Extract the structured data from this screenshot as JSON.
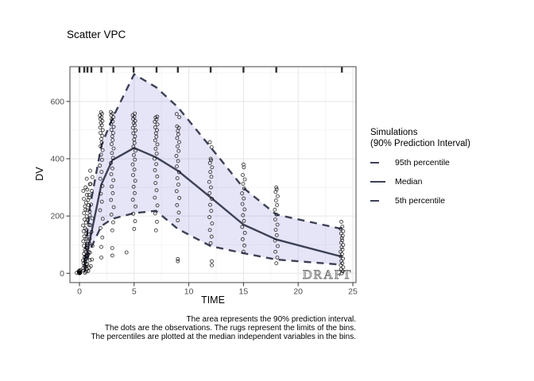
{
  "title": "Scatter VPC",
  "axes": {
    "x_label": "TIME",
    "y_label": "DV",
    "x_ticks": [
      0,
      5,
      10,
      15,
      20,
      25
    ],
    "y_ticks": [
      0,
      200,
      400,
      600
    ]
  },
  "legend": {
    "title_line1": "Simulations",
    "title_line2": "(90% Prediction Interval)",
    "items": [
      {
        "label": "95th percentile",
        "style": "dashed"
      },
      {
        "label": "Median",
        "style": "solid"
      },
      {
        "label": "5th percentile",
        "style": "dashed"
      }
    ]
  },
  "watermark": "DRAFT",
  "caption": {
    "line1": "The area represents the 90% prediction interval.",
    "line2": "The dots are the observations. The rugs represent the limits of the bins.",
    "line3": "The percentiles are plotted at the median independent variables in the bins."
  },
  "colors": {
    "line": "#3d4156",
    "ribbon": "rgba(128,118,216,0.20)",
    "grid_major": "#e6e6e6",
    "grid_minor": "#f2f2f2",
    "panel_border": "#555555",
    "axis_text": "#4d4d4d",
    "tick": "#333333",
    "rug": "#1a1a1a",
    "point": "#000000",
    "watermark": "#7a7a7a"
  },
  "chart_data": {
    "type": "scatter",
    "subtype": "vpc-prediction-interval",
    "xlabel": "TIME",
    "ylabel": "DV",
    "xlim": [
      -0.9,
      25.3
    ],
    "ylim": [
      -32,
      721
    ],
    "grid": true,
    "legend_position": "right",
    "bin_limit_rugs": [
      0,
      0.44,
      0.73,
      1.09,
      2,
      3.1,
      4.95,
      7.05,
      9,
      12,
      15,
      18,
      24
    ],
    "series": [
      {
        "name": "95th percentile",
        "dash": true,
        "x": [
          0.44,
          0.95,
          2,
          3,
          5,
          7,
          9,
          12,
          15,
          18,
          24
        ],
        "y": [
          40,
          230,
          445,
          540,
          695,
          650,
          580,
          440,
          298,
          205,
          155
        ]
      },
      {
        "name": "Median",
        "dash": false,
        "x": [
          0.44,
          0.95,
          2,
          3,
          5,
          7,
          9,
          12,
          15,
          18,
          24
        ],
        "y": [
          25,
          115,
          310,
          395,
          438,
          405,
          358,
          265,
          170,
          118,
          58
        ]
      },
      {
        "name": "5th percentile",
        "dash": true,
        "x": [
          0.44,
          0.95,
          2,
          3,
          5,
          7,
          9,
          12,
          15,
          18,
          24
        ],
        "y": [
          5,
          80,
          165,
          190,
          210,
          218,
          155,
          95,
          70,
          48,
          30
        ]
      }
    ],
    "observation_columns": [
      {
        "t": 0,
        "spread": 0.8,
        "filled": true,
        "dv": [
          0,
          1,
          2,
          3,
          5,
          7,
          9,
          11
        ]
      },
      {
        "t": 0.5,
        "spread": 1.7,
        "dv": [
          2,
          6,
          10,
          14,
          18,
          22,
          26,
          30,
          35,
          40,
          45,
          50,
          56,
          62,
          68,
          75,
          82,
          89,
          96,
          104,
          112,
          120,
          129,
          138,
          147,
          157,
          167,
          177,
          188,
          199,
          210,
          222,
          234,
          247,
          260,
          274,
          288,
          300
        ]
      },
      {
        "t": 0.8,
        "spread": 1.5,
        "dv": [
          8,
          20,
          33,
          46,
          60,
          74,
          89,
          104,
          120,
          136,
          152,
          169,
          186,
          203,
          220,
          238,
          256,
          274,
          292,
          311,
          330
        ]
      },
      {
        "t": 1.05,
        "spread": 1.4,
        "dv": [
          25,
          48,
          72,
          96,
          120,
          144,
          168,
          192,
          216,
          240,
          264,
          288,
          312,
          336,
          358
        ]
      },
      {
        "t": 2,
        "spread": 1.3,
        "dv": [
          92,
          125,
          158,
          190,
          220,
          250,
          278,
          305,
          330,
          354,
          376,
          396,
          414,
          430,
          444,
          457,
          469,
          480,
          490,
          500,
          509,
          517,
          525,
          532,
          539,
          545,
          551,
          557,
          562
        ]
      },
      {
        "t": 3,
        "spread": 1.3,
        "dv": [
          150,
          178,
          205,
          231,
          256,
          280,
          303,
          325,
          346,
          366,
          385,
          403,
          420,
          436,
          451,
          465,
          478,
          490,
          501,
          511,
          521,
          530,
          538,
          545,
          552,
          558,
          563
        ]
      },
      {
        "t": 5,
        "spread": 1.3,
        "dv": [
          155,
          182,
          208,
          233,
          257,
          280,
          302,
          323,
          343,
          362,
          380,
          397,
          413,
          428,
          442,
          455,
          467,
          478,
          489,
          499,
          508,
          517,
          525,
          532,
          539,
          546,
          552,
          558
        ]
      },
      {
        "t": 7,
        "spread": 1.3,
        "dv": [
          150,
          180,
          209,
          237,
          264,
          290,
          315,
          338,
          360,
          381,
          400,
          418,
          435,
          450,
          464,
          477,
          489,
          500,
          510,
          520,
          529,
          537,
          544,
          547
        ]
      },
      {
        "t": 9,
        "spread": 1.3,
        "dv": [
          185,
          212,
          238,
          263,
          287,
          310,
          332,
          353,
          373,
          392,
          410,
          427,
          443,
          458,
          472,
          485,
          497,
          508,
          513,
          545,
          556
        ]
      },
      {
        "t": 12,
        "spread": 1.3,
        "dv": [
          105,
          128,
          151,
          174,
          196,
          218,
          239,
          260,
          280,
          300,
          319,
          337,
          354,
          370,
          385,
          395,
          400,
          440,
          458
        ]
      },
      {
        "t": 15,
        "spread": 1.3,
        "dv": [
          75,
          97,
          119,
          141,
          162,
          183,
          203,
          223,
          242,
          261,
          279,
          296,
          312,
          328,
          343,
          370,
          380
        ]
      },
      {
        "t": 18,
        "spread": 1.3,
        "dv": [
          35,
          55,
          75,
          95,
          114,
          133,
          152,
          170,
          188,
          205,
          222,
          238,
          254,
          269,
          284,
          293,
          300
        ]
      },
      {
        "t": 24,
        "spread": 1.2,
        "dv": [
          0,
          7,
          14,
          21,
          28,
          35,
          43,
          51,
          59,
          67,
          75,
          83,
          91,
          99,
          107,
          115,
          123,
          131,
          139,
          147,
          155,
          163,
          180
        ]
      }
    ],
    "outlier_points": [
      [
        -0.25,
        2
      ],
      [
        2,
        55
      ],
      [
        3,
        62
      ],
      [
        3,
        88
      ],
      [
        4.3,
        73
      ],
      [
        9,
        42
      ],
      [
        9,
        50
      ],
      [
        12.1,
        28
      ],
      [
        12.1,
        42
      ]
    ]
  }
}
